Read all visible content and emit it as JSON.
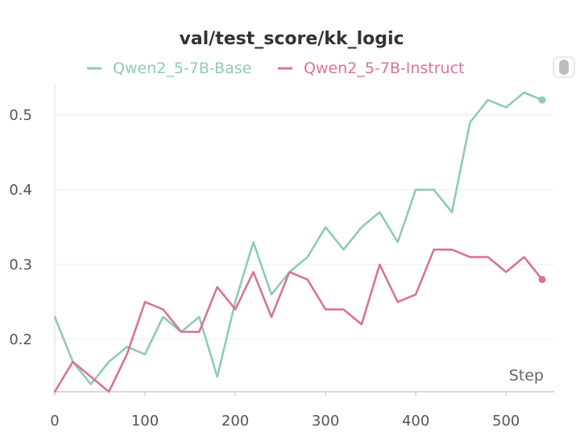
{
  "chart_data": {
    "type": "line",
    "title": "val/test_score/kk_logic",
    "xlabel": "Step",
    "ylabel": "",
    "xlim": [
      0,
      540
    ],
    "ylim": [
      0.13,
      0.53
    ],
    "xticks": [
      0,
      100,
      200,
      300,
      400,
      500
    ],
    "yticks": [
      0.2,
      0.3,
      0.4,
      0.5
    ],
    "grid": true,
    "legend": "top-center",
    "series": [
      {
        "name": "Qwen2_5-7B-Base",
        "color": "#8fcbb4",
        "x": [
          0,
          20,
          40,
          60,
          80,
          100,
          120,
          140,
          160,
          180,
          200,
          220,
          240,
          260,
          280,
          300,
          320,
          340,
          360,
          380,
          400,
          420,
          440,
          460,
          480,
          500,
          520,
          540
        ],
        "y": [
          0.23,
          0.17,
          0.14,
          0.17,
          0.19,
          0.18,
          0.23,
          0.21,
          0.23,
          0.15,
          0.25,
          0.33,
          0.26,
          0.29,
          0.31,
          0.35,
          0.32,
          0.35,
          0.37,
          0.33,
          0.4,
          0.4,
          0.37,
          0.49,
          0.52,
          0.51,
          0.53,
          0.52
        ]
      },
      {
        "name": "Qwen2_5-7B-Instruct",
        "color": "#d8739a",
        "x": [
          0,
          20,
          40,
          60,
          80,
          100,
          120,
          140,
          160,
          180,
          200,
          220,
          240,
          260,
          280,
          300,
          320,
          340,
          360,
          380,
          400,
          420,
          440,
          460,
          480,
          500,
          520,
          540
        ],
        "y": [
          0.13,
          0.17,
          0.15,
          0.13,
          0.18,
          0.25,
          0.24,
          0.21,
          0.21,
          0.27,
          0.24,
          0.29,
          0.23,
          0.29,
          0.28,
          0.24,
          0.24,
          0.22,
          0.3,
          0.25,
          0.26,
          0.32,
          0.32,
          0.31,
          0.31,
          0.29,
          0.31,
          0.28
        ]
      }
    ]
  }
}
